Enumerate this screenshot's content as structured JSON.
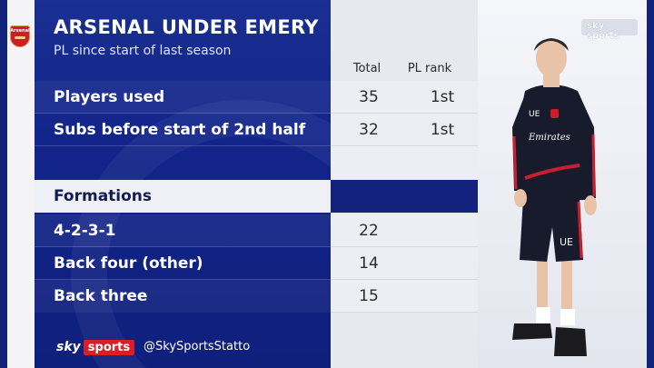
{
  "header": {
    "title": "ARSENAL UNDER EMERY",
    "subtitle": "PL since start of last season"
  },
  "columns": [
    "Total",
    "PL rank"
  ],
  "rows": [
    {
      "label": "Players used",
      "total": "35",
      "rank": "1st"
    },
    {
      "label": "Subs before start of 2nd half",
      "total": "32",
      "rank": "1st"
    }
  ],
  "section": {
    "label": "Formations"
  },
  "formations": [
    {
      "label": "4-2-3-1",
      "total": "22"
    },
    {
      "label": "Back four (other)",
      "total": "14"
    },
    {
      "label": "Back three",
      "total": "15"
    }
  ],
  "footer": {
    "brand_sky": "sky",
    "brand_sports": "sports",
    "handle": "@SkySportsStatto"
  },
  "crest": {
    "text": "Arsenal"
  },
  "broadcast_bug": {
    "text": "sky sports"
  },
  "player": {
    "initials": "UE",
    "sponsor": "Emirates"
  },
  "colors": {
    "navy": "#12247a",
    "red": "#d61f26",
    "light": "#eceef3"
  }
}
